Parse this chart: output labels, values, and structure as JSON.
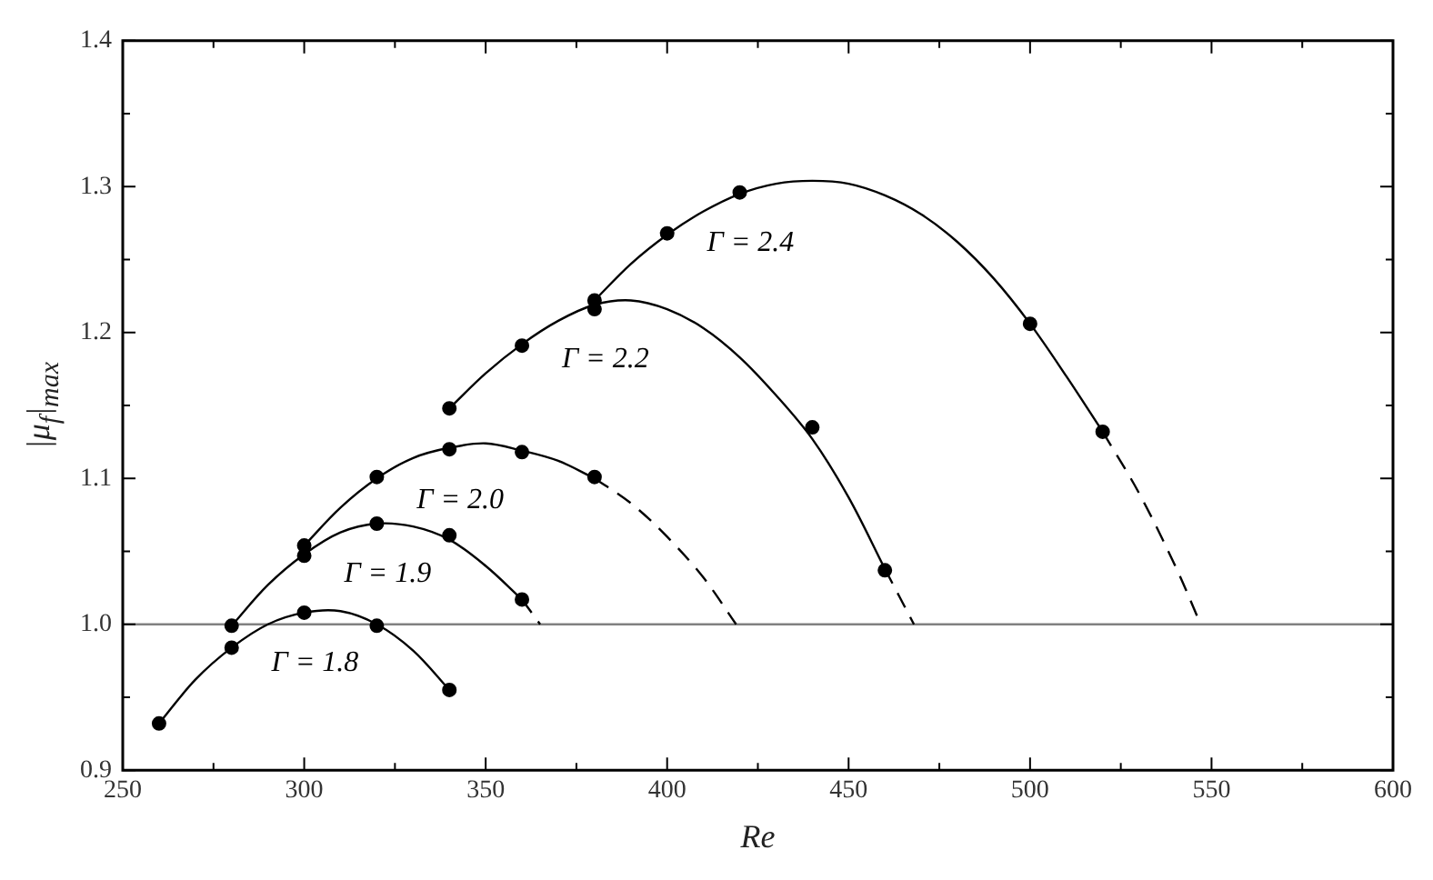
{
  "chart_data": {
    "type": "scatter",
    "xlabel": "Re",
    "ylabel": "|μ$_{f}$|$_{max}$",
    "xlim": [
      250,
      600
    ],
    "ylim": [
      0.9,
      1.4
    ],
    "xticks": [
      250,
      {
        "value": 275,
        "label": null
      },
      300,
      {
        "value": 325,
        "label": null
      },
      350,
      {
        "value": 375,
        "label": null
      },
      400,
      {
        "value": 425,
        "label": null
      },
      450,
      {
        "value": 475,
        "label": null
      },
      500,
      {
        "value": 525,
        "label": null
      },
      550,
      {
        "value": 575,
        "label": null
      },
      600
    ],
    "yticks": [
      0.9,
      {
        "value": 0.95,
        "label": null
      },
      {
        "value": 1,
        "label": "1.0"
      },
      {
        "value": 1.05,
        "label": null
      },
      1.1,
      {
        "value": 1.15,
        "label": null
      },
      1.2,
      {
        "value": 1.25,
        "label": null
      },
      1.3,
      {
        "value": 1.35,
        "label": null
      },
      1.4
    ],
    "grid": false,
    "legend": false,
    "series": [
      {
        "marker": "circle",
        "color": "#000000",
        "x": [
          260,
          280,
          300,
          320,
          340
        ],
        "values": [
          0.932,
          0.984,
          1.008,
          0.999,
          0.955
        ]
      },
      {
        "marker": "circle",
        "color": "#000000",
        "x": [
          280,
          300,
          320,
          340,
          360
        ],
        "values": [
          0.999,
          1.047,
          1.069,
          1.061,
          1.017
        ]
      },
      {
        "marker": "circle",
        "color": "#000000",
        "x": [
          300,
          320,
          340,
          360,
          380
        ],
        "values": [
          1.054,
          1.101,
          1.12,
          1.118,
          1.101
        ]
      },
      {
        "marker": "circle",
        "color": "#000000",
        "x": [
          340,
          360,
          380,
          440,
          460
        ],
        "values": [
          1.148,
          1.191,
          1.216,
          1.135,
          1.037
        ]
      },
      {
        "marker": "circle",
        "color": "#000000",
        "x": [
          380,
          400,
          420,
          500,
          520
        ],
        "values": [
          1.222,
          1.268,
          1.296,
          1.206,
          1.132
        ]
      },
      {
        "type": "line",
        "marker": "none",
        "line_style": "solid",
        "color": "#000000",
        "x": [
          260,
          270,
          280,
          290,
          300,
          310,
          320,
          330,
          340
        ],
        "values": [
          0.932,
          0.962,
          0.984,
          1.0,
          1.008,
          1.009,
          1.0,
          0.982,
          0.955
        ]
      },
      {
        "type": "line",
        "marker": "none",
        "line_style": "solid",
        "color": "#000000",
        "x": [
          280,
          290,
          300,
          310,
          320,
          330,
          340,
          350,
          360
        ],
        "values": [
          0.999,
          1.027,
          1.048,
          1.063,
          1.069,
          1.067,
          1.058,
          1.04,
          1.017
        ]
      },
      {
        "type": "line",
        "marker": "none",
        "line_style": "dashed",
        "color": "#000000",
        "x": [
          360,
          365
        ],
        "values": [
          1.017,
          1.0
        ]
      },
      {
        "type": "line",
        "marker": "none",
        "line_style": "solid",
        "color": "#000000",
        "x": [
          300,
          310,
          320,
          330,
          340,
          350,
          360,
          370,
          380
        ],
        "values": [
          1.054,
          1.08,
          1.1,
          1.114,
          1.121,
          1.124,
          1.119,
          1.112,
          1.1
        ]
      },
      {
        "type": "line",
        "marker": "none",
        "line_style": "dashed",
        "color": "#000000",
        "x": [
          380,
          390,
          400,
          410,
          419
        ],
        "values": [
          1.1,
          1.083,
          1.06,
          1.032,
          1.0
        ]
      },
      {
        "type": "line",
        "marker": "none",
        "line_style": "solid",
        "color": "#000000",
        "x": [
          340,
          350,
          360,
          370,
          380,
          390,
          400,
          410,
          420,
          430,
          440,
          450,
          460
        ],
        "values": [
          1.148,
          1.172,
          1.192,
          1.208,
          1.219,
          1.222,
          1.216,
          1.203,
          1.183,
          1.157,
          1.127,
          1.087,
          1.038
        ]
      },
      {
        "type": "line",
        "marker": "none",
        "line_style": "dashed",
        "color": "#000000",
        "x": [
          460,
          468
        ],
        "values": [
          1.038,
          1.0
        ]
      },
      {
        "type": "line",
        "marker": "none",
        "line_style": "solid",
        "color": "#000000",
        "x": [
          380,
          390,
          400,
          410,
          420,
          430,
          440,
          450,
          460,
          470,
          480,
          490,
          500,
          510,
          520
        ],
        "values": [
          1.222,
          1.247,
          1.267,
          1.283,
          1.295,
          1.302,
          1.304,
          1.302,
          1.294,
          1.281,
          1.262,
          1.237,
          1.206,
          1.17,
          1.132
        ]
      },
      {
        "type": "line",
        "marker": "none",
        "line_style": "dashed",
        "color": "#000000",
        "x": [
          520,
          530,
          540,
          547
        ],
        "values": [
          1.132,
          1.09,
          1.04,
          1.0
        ]
      }
    ],
    "ref_lines": [
      {
        "axis": "y",
        "value": 1,
        "color": "#808080",
        "line_style": "solid"
      }
    ],
    "annotations": [
      "Γ = 1.8",
      "Γ = 1.9",
      "Γ = 2.0",
      "Γ = 2.2",
      "Γ = 2.4"
    ]
  }
}
